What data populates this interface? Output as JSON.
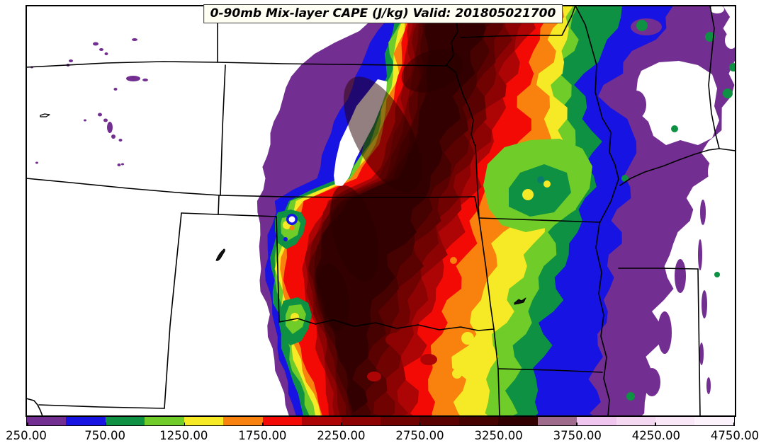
{
  "title": {
    "text": "0-90mb Mix-layer CAPE (J/kg) Valid: 201805021700"
  },
  "chart_data": {
    "type": "heatmap",
    "subtype": "filled-contour-weather-map",
    "title": "0-90mb Mix-layer CAPE (J/kg) Valid: 201805021700",
    "variable": "0-90mb Mix-layer CAPE",
    "units": "J/kg",
    "valid_time": "201805021700",
    "region": "Central United States with state boundaries",
    "legend_position": "bottom",
    "levels": [
      250,
      500,
      750,
      1000,
      1250,
      1500,
      1750,
      2000,
      2250,
      2500,
      2750,
      3000,
      3250,
      3500,
      3750,
      4000,
      4250,
      4500,
      4750
    ],
    "palette": [
      "#722E90",
      "#1713E3",
      "#0F9144",
      "#70CC29",
      "#F6E926",
      "#F8820D",
      "#F30A04",
      "#AD0505",
      "#8D0303",
      "#700202",
      "#5A0101",
      "#460101",
      "#320000",
      "#9E6B8D",
      "#EFC6ED",
      "#F4D8F2",
      "#F9E6F7",
      "#FCF2FB"
    ],
    "colorbar_ticks": [
      "250.00",
      "750.00",
      "1250.00",
      "1750.00",
      "2250.00",
      "2750.00",
      "3250.00",
      "3750.00",
      "4250.00",
      "4750.00"
    ],
    "colorbar_tick_values": [
      250,
      750,
      1250,
      1750,
      2250,
      2750,
      3250,
      3750,
      4250,
      4750
    ],
    "colorbar_min": 250,
    "colorbar_max": 4750
  }
}
